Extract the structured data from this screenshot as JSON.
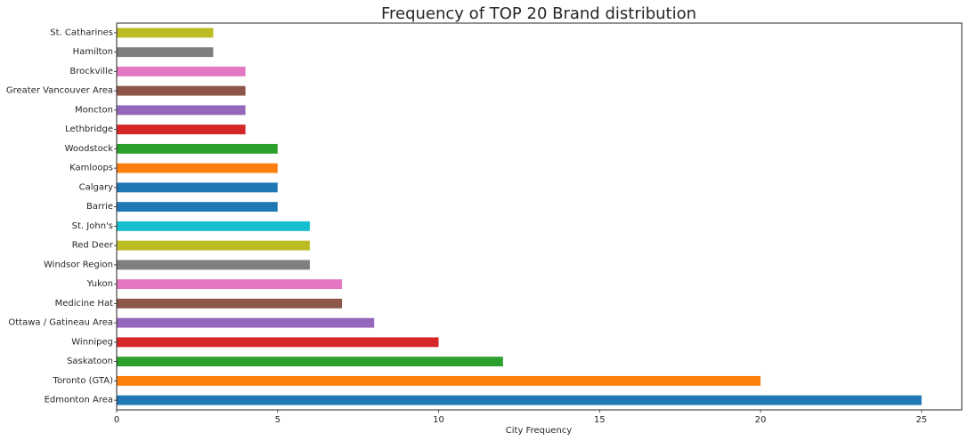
{
  "chart_data": {
    "type": "bar",
    "orientation": "horizontal",
    "title": "Frequency of TOP 20 Brand distribution",
    "xlabel": "City Frequency",
    "ylabel": "",
    "xlim": [
      0,
      26.25
    ],
    "xticks": [
      0,
      5,
      10,
      15,
      20,
      25
    ],
    "grid": false,
    "legend": "none",
    "categories": [
      "Edmonton Area",
      "Toronto (GTA)",
      "Saskatoon",
      "Winnipeg",
      "Ottawa / Gatineau Area",
      "Medicine Hat",
      "Yukon",
      "Windsor Region",
      "Red Deer",
      "St. John's",
      "Barrie",
      "Calgary",
      "Kamloops",
      "Woodstock",
      "Lethbridge",
      "Moncton",
      "Greater Vancouver Area",
      "Brockville",
      "Hamilton",
      "St. Catharines"
    ],
    "values": [
      25,
      20,
      12,
      10,
      8,
      7,
      7,
      6,
      6,
      6,
      5,
      5,
      5,
      5,
      4,
      4,
      4,
      4,
      3,
      3
    ],
    "colors": [
      "#1f77b4",
      "#ff7f0e",
      "#2ca02c",
      "#d62728",
      "#9467bd",
      "#8c564b",
      "#e377c2",
      "#7f7f7f",
      "#bcbd22",
      "#17becf",
      "#1f77b4",
      "#1f77b4",
      "#ff7f0e",
      "#2ca02c",
      "#d62728",
      "#9467bd",
      "#8c564b",
      "#e377c2",
      "#7f7f7f",
      "#bcbd22"
    ]
  }
}
